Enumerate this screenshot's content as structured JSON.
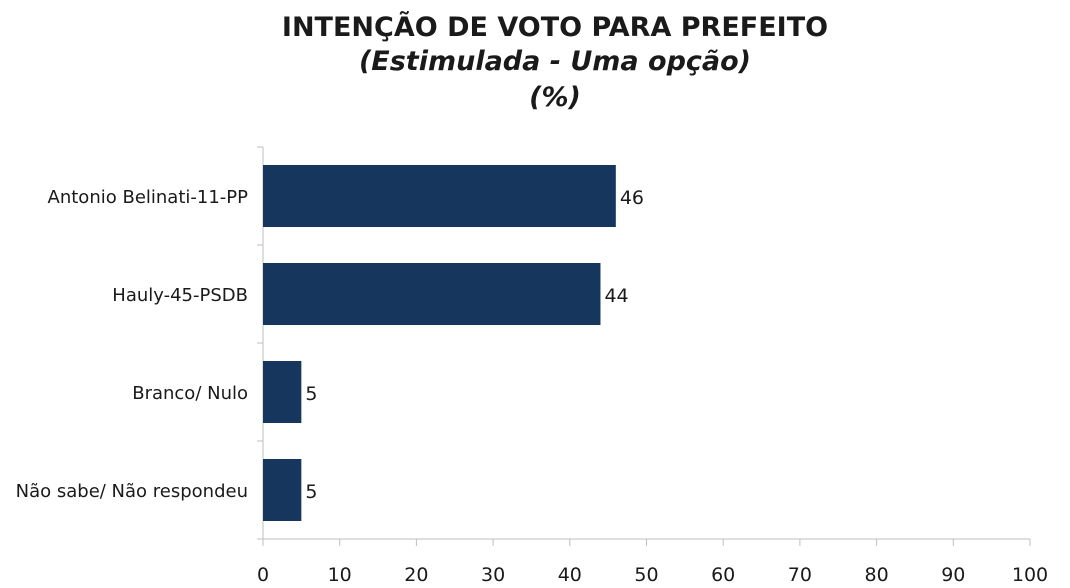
{
  "chart_data": {
    "type": "bar",
    "orientation": "horizontal",
    "title": "INTENÇÃO DE VOTO PARA PREFEITO",
    "subtitle": "(Estimulada - Uma opção)",
    "unit_label": "(%)",
    "categories": [
      "Antonio Belinati-11-PP",
      "Hauly-45-PSDB",
      "Branco/ Nulo",
      "Não sabe/ Não respondeu"
    ],
    "values": [
      46,
      44,
      5,
      5
    ],
    "xlim": [
      0,
      100
    ],
    "xticks": [
      0,
      10,
      20,
      30,
      40,
      50,
      60,
      70,
      80,
      90,
      100
    ],
    "grid": false,
    "data_labels": true,
    "bar_color": "#17365D"
  }
}
